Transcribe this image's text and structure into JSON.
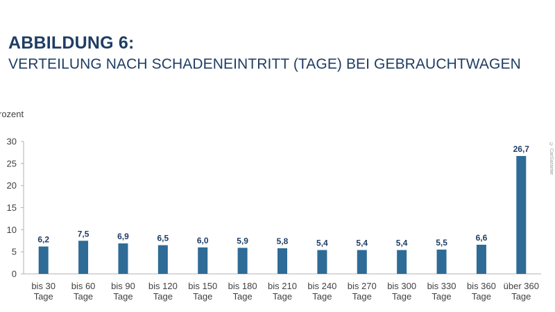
{
  "figure": {
    "label": "ABBILDUNG 6:",
    "subtitle": "VERTEILUNG NACH SCHADENEINTRITT (TAGE) BEI GEBRAUCHTWAGEN",
    "y_unit": "rozent",
    "copyright": "© CarGarantie"
  },
  "colors": {
    "bar": "#2e6b96",
    "text": "#1f3d63",
    "axis": "#b0b0b0"
  },
  "chart_data": {
    "type": "bar",
    "title": "VERTEILUNG NACH SCHADENEINTRITT (TAGE) BEI GEBRAUCHTWAGEN",
    "ylabel": "rozent",
    "xlabel": "",
    "ylim": [
      0,
      30
    ],
    "yticks": [
      0,
      5,
      10,
      15,
      20,
      25,
      30
    ],
    "grid": false,
    "categories": [
      [
        "bis 30",
        "Tage"
      ],
      [
        "bis 60",
        "Tage"
      ],
      [
        "bis 90",
        "Tage"
      ],
      [
        "bis 120",
        "Tage"
      ],
      [
        "bis 150",
        "Tage"
      ],
      [
        "bis 180",
        "Tage"
      ],
      [
        "bis 210",
        "Tage"
      ],
      [
        "bis 240",
        "Tage"
      ],
      [
        "bis 270",
        "Tage"
      ],
      [
        "bis 300",
        "Tage"
      ],
      [
        "bis 330",
        "Tage"
      ],
      [
        "bis 360",
        "Tage"
      ],
      [
        "über 360",
        "Tage"
      ]
    ],
    "values": [
      6.2,
      7.5,
      6.9,
      6.5,
      6.0,
      5.9,
      5.8,
      5.4,
      5.4,
      5.4,
      5.5,
      6.6,
      26.7
    ],
    "value_labels": [
      "6,2",
      "7,5",
      "6,9",
      "6,5",
      "6,0",
      "5,9",
      "5,8",
      "5,4",
      "5,4",
      "5,4",
      "5,5",
      "6,6",
      "26,7"
    ]
  }
}
